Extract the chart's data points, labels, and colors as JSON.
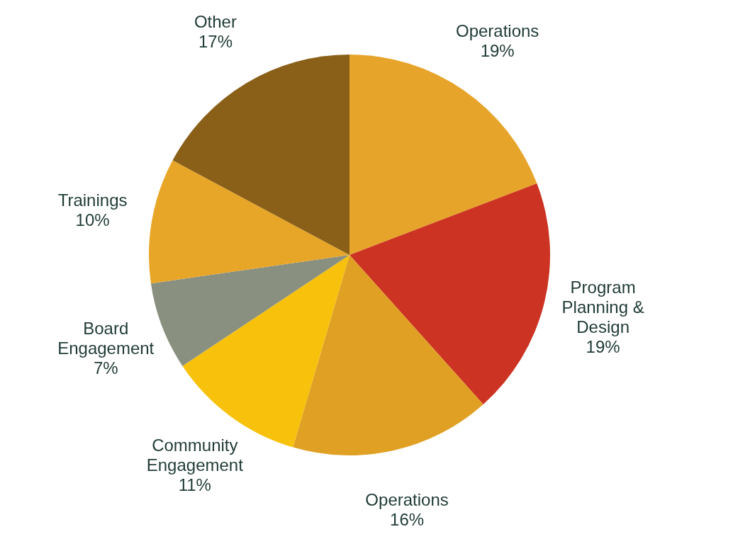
{
  "chart_data": {
    "type": "pie",
    "categories": [
      "Operations",
      "Program Planning & Design",
      "Operations",
      "Community Engagement",
      "Board Engagement",
      "Trainings",
      "Other"
    ],
    "values": [
      19,
      19,
      16,
      11,
      7,
      10,
      17
    ],
    "colors": [
      "#e6a42a",
      "#cc3322",
      "#e0a024",
      "#f7c10c",
      "#8a9080",
      "#e8a628",
      "#8a6018"
    ],
    "value_labels": [
      "19%",
      "19%",
      "16%",
      "11%",
      "7%",
      "10%",
      "17%"
    ],
    "legend": false
  }
}
